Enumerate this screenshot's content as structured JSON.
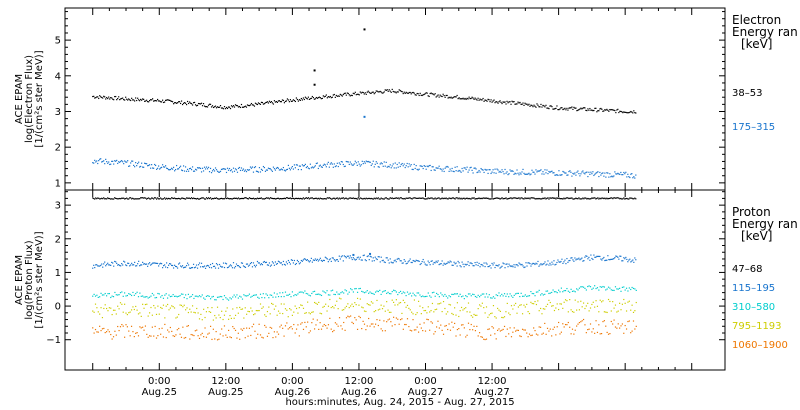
{
  "chart_data": [
    {
      "type": "scatter",
      "panel": "electron",
      "ylabel_lines": [
        "ACE EPAM",
        "log(Electron Flux)",
        "[1/(cm²s ster MeV)]"
      ],
      "legend_title": [
        "Electron",
        "Energy ran"
      ],
      "legend_unit": "[keV]",
      "ylim": [
        0.8,
        5.9
      ],
      "yticks": [
        1,
        2,
        3,
        4,
        5
      ],
      "series": [
        {
          "name": "38–53",
          "color": "#000000",
          "points": [
            [
              -12,
              3.42
            ],
            [
              -6,
              3.35
            ],
            [
              0,
              3.3
            ],
            [
              6,
              3.22
            ],
            [
              12,
              3.12
            ],
            [
              18,
              3.2
            ],
            [
              24,
              3.32
            ],
            [
              30,
              3.42
            ],
            [
              36,
              3.5
            ],
            [
              42,
              3.58
            ],
            [
              48,
              3.48
            ],
            [
              54,
              3.4
            ],
            [
              60,
              3.3
            ],
            [
              66,
              3.2
            ],
            [
              72,
              3.1
            ],
            [
              78,
              3.05
            ],
            [
              84,
              3.0
            ],
            [
              86,
              3.0
            ]
          ],
          "outliers": [
            [
              28,
              4.15
            ],
            [
              28,
              3.75
            ],
            [
              37,
              5.3
            ]
          ]
        },
        {
          "name": "175–315",
          "color": "#1874cd",
          "points": [
            [
              -12,
              1.62
            ],
            [
              -6,
              1.55
            ],
            [
              0,
              1.45
            ],
            [
              6,
              1.38
            ],
            [
              12,
              1.35
            ],
            [
              18,
              1.38
            ],
            [
              24,
              1.42
            ],
            [
              30,
              1.5
            ],
            [
              36,
              1.55
            ],
            [
              42,
              1.5
            ],
            [
              48,
              1.42
            ],
            [
              54,
              1.38
            ],
            [
              60,
              1.32
            ],
            [
              66,
              1.3
            ],
            [
              72,
              1.28
            ],
            [
              78,
              1.25
            ],
            [
              84,
              1.22
            ],
            [
              86,
              1.2
            ]
          ],
          "outliers": [
            [
              37,
              2.85
            ]
          ]
        }
      ]
    },
    {
      "type": "scatter",
      "panel": "proton",
      "ylabel_lines": [
        "ACE EPAM",
        "log(Proton Flux)",
        "[1/(cm²s ster MeV)]"
      ],
      "legend_title": [
        "Proton",
        "Energy ran"
      ],
      "legend_unit": "[keV]",
      "ylim": [
        -1.9,
        3.45
      ],
      "yticks": [
        -1,
        0,
        1,
        2,
        3
      ],
      "series": [
        {
          "name": "47–68",
          "color": "#000000",
          "points": [
            [
              -12,
              3.2
            ],
            [
              86,
              3.2
            ]
          ],
          "outliers": []
        },
        {
          "name": "115–195",
          "color": "#1874cd",
          "points": [
            [
              -12,
              1.2
            ],
            [
              -6,
              1.28
            ],
            [
              0,
              1.22
            ],
            [
              6,
              1.2
            ],
            [
              12,
              1.2
            ],
            [
              18,
              1.25
            ],
            [
              24,
              1.3
            ],
            [
              30,
              1.38
            ],
            [
              36,
              1.45
            ],
            [
              42,
              1.35
            ],
            [
              48,
              1.3
            ],
            [
              54,
              1.25
            ],
            [
              60,
              1.2
            ],
            [
              66,
              1.22
            ],
            [
              72,
              1.3
            ],
            [
              78,
              1.45
            ],
            [
              84,
              1.4
            ],
            [
              86,
              1.35
            ]
          ],
          "outliers": [
            [
              35,
              1.52
            ],
            [
              38,
              1.55
            ]
          ]
        },
        {
          "name": "310–580",
          "color": "#00cdcd",
          "points": [
            [
              -12,
              0.3
            ],
            [
              -6,
              0.35
            ],
            [
              0,
              0.3
            ],
            [
              6,
              0.28
            ],
            [
              12,
              0.25
            ],
            [
              18,
              0.3
            ],
            [
              24,
              0.35
            ],
            [
              30,
              0.4
            ],
            [
              36,
              0.45
            ],
            [
              42,
              0.4
            ],
            [
              48,
              0.35
            ],
            [
              54,
              0.3
            ],
            [
              60,
              0.3
            ],
            [
              66,
              0.35
            ],
            [
              72,
              0.45
            ],
            [
              78,
              0.55
            ],
            [
              84,
              0.5
            ],
            [
              86,
              0.5
            ]
          ],
          "outliers": []
        },
        {
          "name": "795–1193",
          "color": "#cdcd00",
          "points": [
            [
              -12,
              -0.15
            ],
            [
              -6,
              -0.1
            ],
            [
              0,
              -0.15
            ],
            [
              6,
              -0.2
            ],
            [
              12,
              -0.2
            ],
            [
              18,
              -0.15
            ],
            [
              24,
              -0.1
            ],
            [
              30,
              0.0
            ],
            [
              36,
              0.05
            ],
            [
              42,
              0.0
            ],
            [
              48,
              -0.05
            ],
            [
              54,
              -0.1
            ],
            [
              60,
              -0.15
            ],
            [
              66,
              -0.1
            ],
            [
              72,
              0.0
            ],
            [
              78,
              0.05
            ],
            [
              84,
              0.0
            ],
            [
              86,
              0.0
            ]
          ],
          "outliers": []
        },
        {
          "name": "1060–1900",
          "color": "#ee7600",
          "points": [
            [
              -12,
              -0.8
            ],
            [
              -6,
              -0.75
            ],
            [
              0,
              -0.75
            ],
            [
              6,
              -0.8
            ],
            [
              12,
              -0.8
            ],
            [
              18,
              -0.75
            ],
            [
              24,
              -0.7
            ],
            [
              30,
              -0.55
            ],
            [
              36,
              -0.5
            ],
            [
              42,
              -0.55
            ],
            [
              48,
              -0.6
            ],
            [
              54,
              -0.7
            ],
            [
              60,
              -0.8
            ],
            [
              66,
              -0.75
            ],
            [
              72,
              -0.65
            ],
            [
              78,
              -0.6
            ],
            [
              84,
              -0.65
            ],
            [
              86,
              -0.65
            ]
          ],
          "outliers": []
        }
      ]
    }
  ],
  "x_axis": {
    "xlim": [
      -17,
      102
    ],
    "ticks": [
      {
        "x": 0,
        "time": "0:00",
        "date": "Aug.25"
      },
      {
        "x": 12,
        "time": "12:00",
        "date": "Aug.25"
      },
      {
        "x": 24,
        "time": "0:00",
        "date": "Aug.26"
      },
      {
        "x": 36,
        "time": "12:00",
        "date": "Aug.26"
      },
      {
        "x": 48,
        "time": "0:00",
        "date": "Aug.27"
      },
      {
        "x": 60,
        "time": "12:00",
        "date": "Aug.27"
      }
    ],
    "xlabel": "hours:minutes, Aug. 24, 2015 - Aug. 27, 2015"
  }
}
